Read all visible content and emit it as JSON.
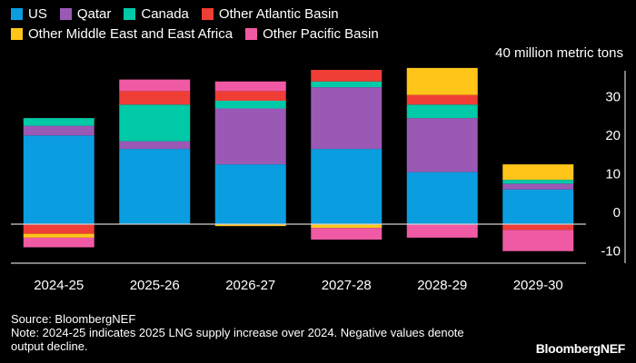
{
  "chart_data": {
    "type": "bar",
    "stacked": true,
    "unit_label": "40 million metric tons",
    "categories": [
      "2024-25",
      "2025-26",
      "2026-27",
      "2027-28",
      "2028-29",
      "2029-30"
    ],
    "series": [
      {
        "name": "US",
        "color": "#0a9ee0",
        "values": [
          23,
          19.5,
          15.5,
          19.5,
          13.5,
          9
        ]
      },
      {
        "name": "Qatar",
        "color": "#9b59b6",
        "values": [
          2.5,
          2,
          14.5,
          16,
          14,
          1.5
        ]
      },
      {
        "name": "Canada",
        "color": "#00c9a7",
        "values": [
          2,
          9.5,
          2,
          1.5,
          3.5,
          1
        ]
      },
      {
        "name": "Other Atlantic Basin",
        "color": "#ef3e36",
        "values": [
          -2.5,
          3.5,
          2.5,
          3,
          2.5,
          -1.5
        ]
      },
      {
        "name": "Other Middle East and East Africa",
        "color": "#ffc619",
        "values": [
          -1,
          0,
          -0.5,
          -1,
          7,
          4
        ]
      },
      {
        "name": "Other Pacific Basin",
        "color": "#f05aa4",
        "values": [
          -2.5,
          3,
          2.5,
          -3,
          -3.5,
          -5.5
        ]
      }
    ],
    "y_ticks": [
      "30",
      "20",
      "10",
      "0",
      "-10"
    ],
    "ylim": [
      -11,
      42
    ],
    "legend_position": "top-left",
    "grid": false
  },
  "legend_rows": [
    [
      "US",
      "Qatar",
      "Canada",
      "Other Atlantic Basin"
    ],
    [
      "Other Middle East and East Africa",
      "Other Pacific Basin"
    ]
  ],
  "footer": {
    "source": "Source: BloombergNEF",
    "note": "Note: 2024-25 indicates 2025 LNG supply increase over 2024. Negative values denote output decline.",
    "brand": "BloombergNEF"
  }
}
